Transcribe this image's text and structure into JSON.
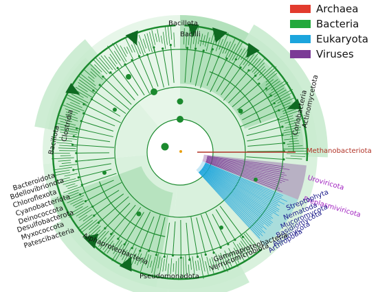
{
  "legend": [
    {
      "label": "Archaea",
      "color": "#e23b2e"
    },
    {
      "label": "Bacteria",
      "color": "#22a83c"
    },
    {
      "label": "Eukaryota",
      "color": "#1ca5dd"
    },
    {
      "label": "Viruses",
      "color": "#7b3a96"
    }
  ],
  "colors": {
    "bacteria_dark": "#1b8a2e",
    "bacteria_band": "#8ed29b",
    "bacteria_band_light": "#c9ebcf",
    "eukaryota": "#1ca5dd",
    "viruses": "#7b3a96",
    "archaea": "#b03024"
  },
  "clade_labels": [
    {
      "text": "Bacillota",
      "group": "bacteria"
    },
    {
      "text": "Bacilli",
      "group": "bacteria"
    },
    {
      "text": "Actinomycetota",
      "group": "bacteria"
    },
    {
      "text": "Coriobacteria",
      "group": "bacteria"
    },
    {
      "text": "Methanobacteriota",
      "group": "archaea"
    },
    {
      "text": "Uroviricota",
      "group": "viruses"
    },
    {
      "text": "Preplasmiviricota",
      "group": "viruses"
    },
    {
      "text": "Streptophyta",
      "group": "eukaryota"
    },
    {
      "text": "Nematoda",
      "group": "eukaryota"
    },
    {
      "text": "Mucoromycota",
      "group": "eukaryota"
    },
    {
      "text": "Basidiomycota",
      "group": "eukaryota"
    },
    {
      "text": "Ascomycota",
      "group": "eukaryota"
    },
    {
      "text": "Arthropoda",
      "group": "eukaryota"
    },
    {
      "text": "Gammaproteobacteria",
      "group": "bacteria"
    },
    {
      "text": "Verrucomicrobiota",
      "group": "bacteria"
    },
    {
      "text": "Pseudomonadota",
      "group": "bacteria"
    },
    {
      "text": "Alphaproteobacteria",
      "group": "bacteria"
    },
    {
      "text": "Bacillota",
      "group": "bacteria"
    },
    {
      "text": "Clostridia",
      "group": "bacteria"
    },
    {
      "text": "Bacteroidota",
      "group": "bacteria"
    },
    {
      "text": "Bdellovibrionota",
      "group": "bacteria"
    },
    {
      "text": "Chloroflexota",
      "group": "bacteria"
    },
    {
      "text": "Cyanobacteriota",
      "group": "bacteria"
    },
    {
      "text": "Deinococcota",
      "group": "bacteria"
    },
    {
      "text": "Desulfobacterota",
      "group": "bacteria"
    },
    {
      "text": "Myxococcota",
      "group": "bacteria"
    },
    {
      "text": "Patescibacteria",
      "group": "bacteria"
    }
  ]
}
